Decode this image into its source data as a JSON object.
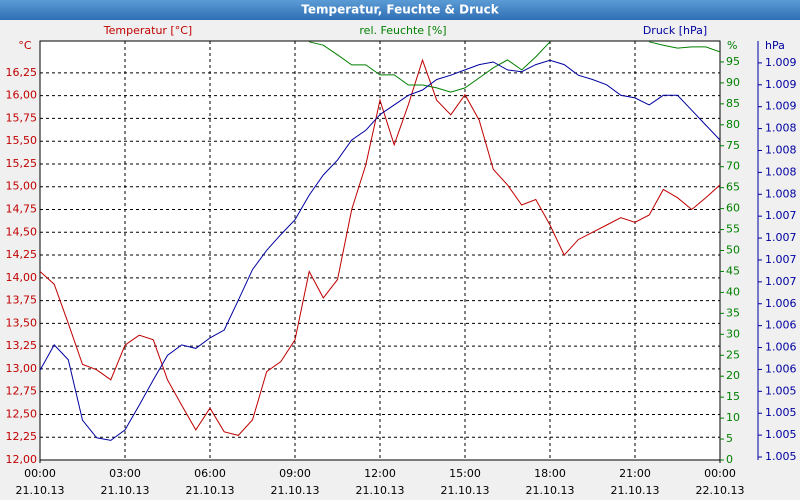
{
  "chart_data": {
    "type": "line",
    "title": "Temperatur, Feuchte & Druck",
    "ylabel": "°C",
    "y2label": "%",
    "y3label": "hPa",
    "grid": true,
    "x": [
      0,
      0.5,
      1,
      1.5,
      2,
      2.5,
      3,
      3.5,
      4,
      4.5,
      5,
      5.5,
      6,
      6.5,
      7,
      7.5,
      8,
      8.5,
      9,
      9.5,
      10,
      10.5,
      11,
      11.5,
      12,
      12.5,
      13,
      13.5,
      14,
      14.5,
      15,
      15.5,
      16,
      16.5,
      17,
      17.5,
      18,
      18.5,
      19,
      19.5,
      20,
      20.5,
      21,
      21.5,
      22,
      22.5,
      23,
      23.5,
      24
    ],
    "xlim": [
      0,
      24
    ],
    "xticks": [
      {
        "value": 0,
        "label": "00:00"
      },
      {
        "value": 3,
        "label": "03:00"
      },
      {
        "value": 6,
        "label": "06:00"
      },
      {
        "value": 9,
        "label": "09:00"
      },
      {
        "value": 12,
        "label": "12:00"
      },
      {
        "value": 15,
        "label": "15:00"
      },
      {
        "value": 18,
        "label": "18:00"
      },
      {
        "value": 21,
        "label": "21:00"
      },
      {
        "value": 24,
        "label": "00:00"
      }
    ],
    "xtick_dates": [
      "21.10.13",
      "21.10.13",
      "21.10.13",
      "21.10.13",
      "21.10.13",
      "21.10.13",
      "21.10.13",
      "21.10.13",
      "22.10.13"
    ],
    "ylim": [
      12,
      16.6
    ],
    "yticks": [
      {
        "value": 12,
        "label": "12,00"
      },
      {
        "value": 12.25,
        "label": "12,25"
      },
      {
        "value": 12.5,
        "label": "12,50"
      },
      {
        "value": 12.75,
        "label": "12,75"
      },
      {
        "value": 13,
        "label": "13,00"
      },
      {
        "value": 13.25,
        "label": "13,25"
      },
      {
        "value": 13.5,
        "label": "13,50"
      },
      {
        "value": 13.75,
        "label": "13,75"
      },
      {
        "value": 14,
        "label": "14,00"
      },
      {
        "value": 14.25,
        "label": "14,25"
      },
      {
        "value": 14.5,
        "label": "14,50"
      },
      {
        "value": 14.75,
        "label": "14,75"
      },
      {
        "value": 15,
        "label": "15,00"
      },
      {
        "value": 15.25,
        "label": "15,25"
      },
      {
        "value": 15.5,
        "label": "15,50"
      },
      {
        "value": 15.75,
        "label": "15,75"
      },
      {
        "value": 16,
        "label": "16,00"
      },
      {
        "value": 16.25,
        "label": "16,25"
      }
    ],
    "y2lim": [
      0,
      100
    ],
    "y2ticks": [
      0,
      5,
      10,
      15,
      20,
      25,
      30,
      35,
      40,
      45,
      50,
      55,
      60,
      65,
      70,
      75,
      80,
      85,
      90,
      95
    ],
    "y3lim": [
      1004.566,
      1009.35
    ],
    "y3ticks": [
      {
        "value": 1004.6,
        "label": "1.005"
      },
      {
        "value": 1004.85,
        "label": "1.005"
      },
      {
        "value": 1005.1,
        "label": "1.005"
      },
      {
        "value": 1005.35,
        "label": "1.005"
      },
      {
        "value": 1005.6,
        "label": "1.006"
      },
      {
        "value": 1005.85,
        "label": "1.006"
      },
      {
        "value": 1006.1,
        "label": "1.006"
      },
      {
        "value": 1006.35,
        "label": "1.006"
      },
      {
        "value": 1006.6,
        "label": "1.007"
      },
      {
        "value": 1006.85,
        "label": "1.007"
      },
      {
        "value": 1007.1,
        "label": "1.007"
      },
      {
        "value": 1007.35,
        "label": "1.007"
      },
      {
        "value": 1007.6,
        "label": "1.008"
      },
      {
        "value": 1007.85,
        "label": "1.008"
      },
      {
        "value": 1008.1,
        "label": "1.008"
      },
      {
        "value": 1008.35,
        "label": "1.008"
      },
      {
        "value": 1008.6,
        "label": "1.009"
      },
      {
        "value": 1008.85,
        "label": "1.009"
      },
      {
        "value": 1009.1,
        "label": "1.009"
      }
    ],
    "series": [
      {
        "name": "Temperatur [°C]",
        "color": "#c00000",
        "axis": "y",
        "values": [
          14.07,
          13.93,
          13.5,
          13.05,
          12.99,
          12.88,
          13.26,
          13.37,
          13.32,
          12.88,
          12.6,
          12.33,
          12.57,
          12.31,
          12.27,
          12.44,
          12.97,
          13.08,
          13.32,
          14.07,
          13.78,
          13.98,
          14.75,
          15.24,
          15.95,
          15.46,
          15.9,
          16.39,
          15.95,
          15.79,
          16.01,
          15.73,
          15.19,
          15.02,
          14.8,
          14.86,
          14.58,
          14.25,
          14.42,
          14.5,
          14.58,
          14.66,
          14.61,
          14.69,
          14.97,
          14.88,
          14.75,
          14.88,
          15.02
        ]
      },
      {
        "name": "rel. Feuchte [%]",
        "color": "#008000",
        "axis": "y2",
        "values": [
          null,
          null,
          null,
          null,
          null,
          null,
          null,
          null,
          null,
          null,
          null,
          null,
          null,
          null,
          null,
          null,
          null,
          null,
          null,
          99.8,
          99,
          96.7,
          94.3,
          94.3,
          91.9,
          91.9,
          89.5,
          89.5,
          88.8,
          87.8,
          88.8,
          91.2,
          93.6,
          95.5,
          93.1,
          96.2,
          99.8,
          null,
          null,
          null,
          null,
          null,
          null,
          99.8,
          99,
          98.3,
          98.6,
          98.6,
          97.4
        ]
      },
      {
        "name": "Druck [hPa]",
        "color": "#0000a0",
        "axis": "y3",
        "values": [
          1005.59,
          1005.88,
          1005.71,
          1005.02,
          1004.82,
          1004.79,
          1004.91,
          1005.19,
          1005.48,
          1005.76,
          1005.88,
          1005.84,
          1005.96,
          1006.05,
          1006.39,
          1006.74,
          1006.96,
          1007.14,
          1007.31,
          1007.59,
          1007.82,
          1007.99,
          1008.22,
          1008.33,
          1008.51,
          1008.62,
          1008.73,
          1008.79,
          1008.91,
          1008.96,
          1009.02,
          1009.08,
          1009.11,
          1009.02,
          1009.0,
          1009.08,
          1009.13,
          1009.08,
          1008.96,
          1008.91,
          1008.85,
          1008.73,
          1008.7,
          1008.62,
          1008.73,
          1008.73,
          1008.56,
          1008.39,
          1008.22
        ]
      }
    ]
  }
}
